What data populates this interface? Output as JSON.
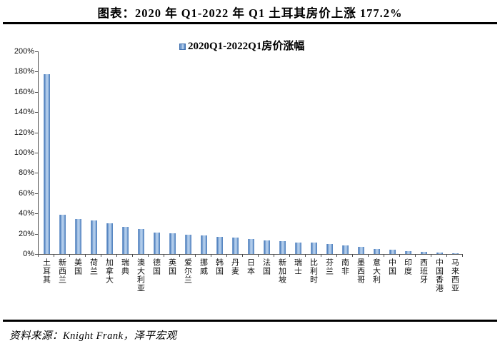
{
  "header": {
    "title": "图表：2020 年 Q1-2022 年 Q1 土耳其房价上涨 177.2%"
  },
  "chart_data": {
    "type": "bar",
    "title": "图表：2020 年 Q1-2022 年 Q1 土耳其房价上涨 177.2%",
    "legend": "2020Q1-2022Q1房价涨幅",
    "legend_position": "top-center",
    "grid": false,
    "xlabel": "",
    "ylabel": "",
    "ylim": [
      0,
      200
    ],
    "ytick_step": 20,
    "yticks": [
      "0%",
      "20%",
      "40%",
      "60%",
      "80%",
      "100%",
      "120%",
      "140%",
      "160%",
      "180%",
      "200%"
    ],
    "bar_color_dark": "#4d7ebc",
    "bar_color_light": "#a9c6e8",
    "axis_color": "#4d4d4d",
    "categories": [
      "土耳其",
      "新西兰",
      "美国",
      "荷兰",
      "加拿大",
      "瑞典",
      "澳大利亚",
      "德国",
      "英国",
      "爱尔兰",
      "挪威",
      "韩国",
      "丹麦",
      "日本",
      "法国",
      "新加坡",
      "瑞士",
      "比利时",
      "芬兰",
      "南非",
      "墨西哥",
      "意大利",
      "中国",
      "印度",
      "西班牙",
      "中国香港",
      "马来西亚"
    ],
    "values": [
      177.2,
      38.8,
      34.6,
      32.9,
      30.6,
      26.9,
      24.8,
      21.3,
      20.3,
      18.9,
      18.0,
      16.7,
      15.9,
      14.5,
      13.4,
      12.8,
      11.6,
      11.1,
      9.7,
      8.3,
      7.0,
      4.9,
      3.9,
      3.0,
      2.0,
      1.6,
      0.3
    ]
  },
  "footer": {
    "source": "资料来源：Knight Frank，泽平宏观"
  }
}
